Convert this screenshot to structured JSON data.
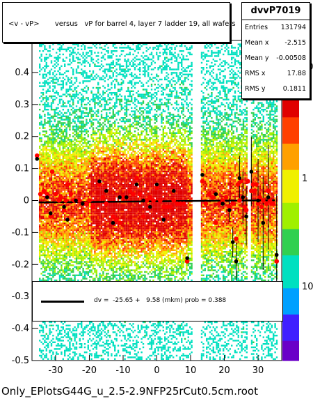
{
  "title": "<v - vP>       versus   vP for barrel 4, layer 7 ladder 19, all wafers",
  "stats": {
    "name": "dvvP7019",
    "rows": [
      {
        "key": "Entries",
        "value": "131794"
      },
      {
        "key": "Mean x",
        "value": "-2.515"
      },
      {
        "key": "Mean y",
        "value": "-0.00508"
      },
      {
        "key": "RMS x",
        "value": "17.88"
      },
      {
        "key": "RMS y",
        "value": "0.1811"
      }
    ]
  },
  "legend": {
    "text": "dv =  -25.65 +   9.58 (mkm) prob = 0.388"
  },
  "footer": "Only_EPlotsG44G_u_2.5-2.9NFP25rCut0.5cm.root",
  "colors": {
    "profile_red": "#ff0000",
    "profile_black": "#000000",
    "fit_line": "#000000",
    "palette": [
      "#6a00c8",
      "#4020ff",
      "#00a0ff",
      "#00e0c0",
      "#30d050",
      "#a0f000",
      "#f0f000",
      "#ffa000",
      "#ff4000",
      "#e00000"
    ]
  },
  "chart_data": {
    "type": "heatmap",
    "x_ticks": [
      -30,
      -20,
      -10,
      0,
      10,
      20,
      30
    ],
    "y_ticks": [
      -0.5,
      -0.4,
      -0.3,
      -0.2,
      -0.1,
      0,
      0.1,
      0.2,
      0.3,
      0.4
    ],
    "xlim": [
      -37,
      37
    ],
    "ylim": [
      -0.5,
      0.5
    ],
    "z_ticks": [
      "10",
      "1",
      "10"
    ],
    "fit": {
      "intercept_mkm": -25.65,
      "slope_mkm": 9.58,
      "prob": 0.388
    },
    "profile_red": [
      [
        -35.5,
        0.14
      ],
      [
        -34.5,
        0.02
      ],
      [
        -33.5,
        0.03
      ],
      [
        -32.5,
        0.02
      ],
      [
        -31.5,
        -0.05
      ],
      [
        -31,
        0.09
      ],
      [
        -30,
        0.02
      ],
      [
        -29,
        0.0
      ],
      [
        -28.5,
        0.01
      ],
      [
        -27.5,
        -0.03
      ],
      [
        -27,
        0.0
      ],
      [
        -26.5,
        0.05
      ],
      [
        -25.5,
        0.02
      ],
      [
        -24.5,
        0.0
      ],
      [
        -23,
        0.0
      ],
      [
        -22,
        -0.01
      ],
      [
        -21,
        -0.01
      ],
      [
        -20,
        0.0
      ],
      [
        -19,
        -0.02
      ],
      [
        -17,
        0.05
      ],
      [
        -16,
        0.01
      ],
      [
        -15,
        -0.01
      ],
      [
        -13,
        -0.05
      ],
      [
        -12,
        -0.06
      ],
      [
        -11,
        -0.07
      ],
      [
        -10,
        0.01
      ],
      [
        -9,
        0.01
      ],
      [
        -8,
        0.03
      ],
      [
        -7,
        0.02
      ],
      [
        -6,
        0.07
      ],
      [
        -5,
        0.02
      ],
      [
        -4,
        -0.05
      ],
      [
        -3,
        0.0
      ],
      [
        -2,
        0.01
      ],
      [
        -1,
        0.0
      ],
      [
        0,
        0.04
      ],
      [
        1,
        0.0
      ],
      [
        2,
        -0.02
      ],
      [
        3,
        -0.02
      ],
      [
        4,
        -0.02
      ],
      [
        5,
        0.0
      ],
      [
        6,
        -0.01
      ],
      [
        7,
        -0.01
      ],
      [
        8,
        -0.01
      ],
      [
        9,
        -0.19
      ],
      [
        13.5,
        0.06
      ],
      [
        14.5,
        -0.01
      ],
      [
        15.5,
        0.02
      ],
      [
        16.5,
        0.01
      ],
      [
        17.5,
        -0.07
      ],
      [
        18.5,
        -0.01
      ],
      [
        19.5,
        0.0
      ],
      [
        20.5,
        0.01
      ],
      [
        21.5,
        -0.02
      ],
      [
        22.5,
        -0.01
      ],
      [
        23.5,
        -0.12
      ],
      [
        24,
        0.05
      ],
      [
        24.5,
        0.0
      ],
      [
        25,
        0.06
      ],
      [
        26,
        -0.02
      ],
      [
        26.5,
        -0.03
      ],
      [
        27,
        0.06
      ],
      [
        28,
        0.03
      ],
      [
        28.5,
        0.05
      ],
      [
        29,
        0.03
      ],
      [
        29.5,
        0.05
      ],
      [
        30,
        -0.01
      ],
      [
        30.5,
        0.01
      ],
      [
        31,
        -0.02
      ],
      [
        31.5,
        0.0
      ],
      [
        32.5,
        -0.01
      ],
      [
        33,
        0.03
      ],
      [
        33.5,
        0.0
      ],
      [
        34,
        -0.01
      ],
      [
        34.5,
        -0.01
      ],
      [
        35.5,
        -0.19
      ]
    ],
    "profile_black": [
      [
        -35.5,
        0.13
      ],
      [
        -32.5,
        0.01
      ],
      [
        -31.5,
        -0.04
      ],
      [
        -27.5,
        -0.02
      ],
      [
        -26.5,
        -0.06
      ],
      [
        -24,
        0.0
      ],
      [
        -22,
        -0.01
      ],
      [
        -17,
        0.06
      ],
      [
        -15,
        0.03
      ],
      [
        -13,
        -0.07
      ],
      [
        -11,
        0.01
      ],
      [
        -9,
        0.01
      ],
      [
        -6,
        0.05
      ],
      [
        -4,
        0.0
      ],
      [
        -2,
        -0.02
      ],
      [
        0,
        0.05
      ],
      [
        2,
        -0.06
      ],
      [
        5,
        0.03
      ],
      [
        9,
        -0.18
      ],
      [
        13.5,
        0.08
      ],
      [
        17.5,
        0.02
      ],
      [
        19.5,
        -0.01
      ],
      [
        21.5,
        -0.03
      ],
      [
        22.5,
        -0.13
      ],
      [
        23.5,
        -0.19
      ],
      [
        24.5,
        0.07
      ],
      [
        25.5,
        0.01
      ],
      [
        26.5,
        -0.05
      ],
      [
        28,
        0.09
      ],
      [
        30,
        0.0
      ],
      [
        31.5,
        -0.07
      ],
      [
        33,
        0.01
      ],
      [
        35.5,
        -0.17
      ]
    ]
  }
}
